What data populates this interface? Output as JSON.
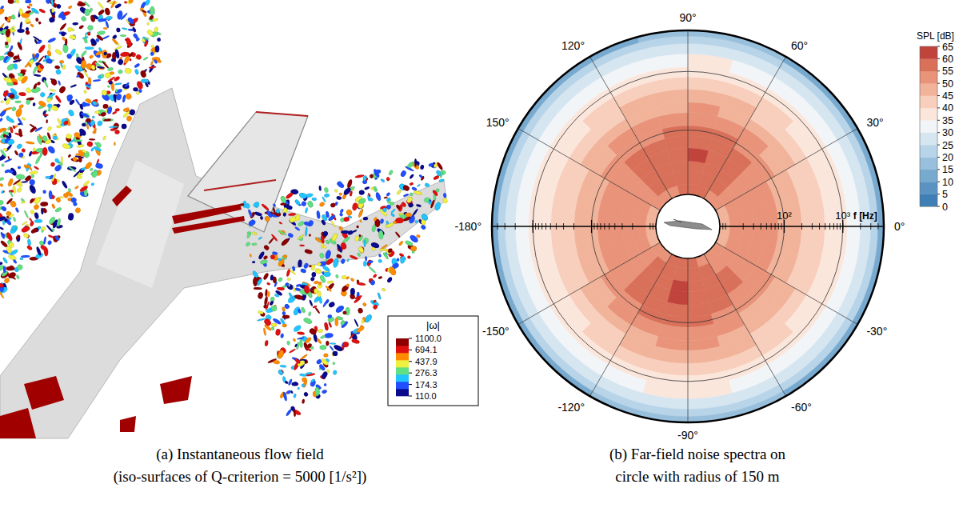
{
  "figure": {
    "panel_a": {
      "caption": [
        "(a) Instantaneous flow field",
        "(iso-surfaces of Q-criterion = 5000 [1/s²])"
      ],
      "legend": {
        "title": "|ω|",
        "ticks": [
          {
            "value": 1100,
            "label": "1100.0"
          },
          {
            "value": 694.1,
            "label": "694.1"
          },
          {
            "value": 437.9,
            "label": "437.9"
          },
          {
            "value": 276.3,
            "label": "276.3"
          },
          {
            "value": 174.3,
            "label": "174.3"
          },
          {
            "value": 110,
            "label": "110.0"
          }
        ],
        "colors": [
          "#0a0a8c",
          "#1f4fff",
          "#22c4ff",
          "#60e080",
          "#f0f040",
          "#ff8c00",
          "#e01010",
          "#8b0000"
        ]
      }
    },
    "panel_b": {
      "caption": [
        "(b) Far-field noise spectra on",
        "circle with radius of 150 m"
      ]
    }
  },
  "chart_data": {
    "type": "polar_contour",
    "log": true,
    "grid": true,
    "r_label": "f [Hz]",
    "rlim": [
      8,
      5000
    ],
    "rticks": [
      {
        "value": 100,
        "label": "10²"
      },
      {
        "value": 1000,
        "label": "10³"
      }
    ],
    "thetaticks": [
      {
        "value": 90,
        "label": "90°"
      },
      {
        "value": 60,
        "label": "60°"
      },
      {
        "value": 30,
        "label": "30°"
      },
      {
        "value": 0,
        "label": "0°"
      },
      {
        "value": -30,
        "label": "-30°"
      },
      {
        "value": -60,
        "label": "-60°"
      },
      {
        "value": -90,
        "label": "-90°"
      },
      {
        "value": -120,
        "label": "-120°"
      },
      {
        "value": -150,
        "label": "-150°"
      },
      {
        "value": -180,
        "label": "-180°"
      },
      {
        "value": 150,
        "label": "150°"
      },
      {
        "value": 120,
        "label": "120°"
      }
    ],
    "theta_edges": [
      -180,
      -165,
      -150,
      -135,
      -120,
      -105,
      -90,
      -75,
      -60,
      -45,
      -30,
      -15,
      0,
      15,
      30,
      45,
      60,
      75,
      90,
      105,
      120,
      135,
      150,
      165,
      180
    ],
    "r_edges": [
      8,
      12,
      20,
      30,
      50,
      80,
      120,
      200,
      300,
      500,
      800,
      1200,
      2000,
      3000,
      4000,
      5000
    ],
    "values": [
      [
        48,
        49,
        51,
        53,
        55,
        57,
        56,
        54,
        52,
        51,
        49,
        48,
        48,
        49,
        51,
        53,
        55,
        56,
        55,
        54,
        53,
        51,
        49,
        48
      ],
      [
        50,
        51,
        53,
        55,
        57,
        59,
        58,
        56,
        54,
        53,
        51,
        50,
        50,
        51,
        53,
        55,
        57,
        58,
        57,
        56,
        55,
        53,
        51,
        50
      ],
      [
        51,
        52,
        54,
        56,
        58,
        60,
        59,
        57,
        55,
        54,
        52,
        51,
        51,
        52,
        54,
        56,
        58,
        59,
        58,
        57,
        56,
        54,
        52,
        51
      ],
      [
        51,
        52,
        54,
        56,
        59,
        61,
        59,
        57,
        55,
        54,
        52,
        51,
        51,
        52,
        54,
        56,
        59,
        60,
        58,
        57,
        56,
        54,
        52,
        51
      ],
      [
        50,
        51,
        53,
        55,
        57,
        59,
        58,
        56,
        54,
        53,
        51,
        50,
        50,
        51,
        53,
        55,
        58,
        58,
        57,
        56,
        55,
        53,
        51,
        50
      ],
      [
        48,
        49,
        51,
        53,
        55,
        57,
        56,
        54,
        52,
        51,
        49,
        48,
        48,
        49,
        51,
        53,
        55,
        56,
        55,
        54,
        53,
        51,
        49,
        48
      ],
      [
        45,
        46,
        48,
        50,
        52,
        54,
        53,
        51,
        49,
        48,
        46,
        45,
        45,
        46,
        48,
        50,
        52,
        53,
        52,
        51,
        50,
        48,
        46,
        45
      ],
      [
        42,
        43,
        45,
        47,
        49,
        50,
        50,
        48,
        46,
        45,
        43,
        42,
        42,
        43,
        45,
        47,
        49,
        50,
        49,
        48,
        47,
        45,
        43,
        42
      ],
      [
        40,
        41,
        42,
        44,
        45,
        46,
        46,
        45,
        43,
        42,
        41,
        40,
        40,
        41,
        42,
        44,
        45,
        46,
        45,
        45,
        44,
        42,
        41,
        40
      ],
      [
        38,
        38,
        39,
        40,
        41,
        42,
        42,
        41,
        40,
        39,
        38,
        38,
        38,
        38,
        39,
        40,
        41,
        42,
        41,
        41,
        40,
        39,
        38,
        38
      ],
      [
        35,
        35,
        36,
        37,
        38,
        39,
        39,
        38,
        37,
        36,
        35,
        35,
        35,
        35,
        36,
        37,
        38,
        39,
        38,
        38,
        37,
        36,
        35,
        35
      ],
      [
        31,
        31,
        32,
        33,
        34,
        35,
        35,
        34,
        33,
        32,
        31,
        31,
        31,
        31,
        32,
        33,
        34,
        35,
        34,
        34,
        33,
        32,
        31,
        31
      ],
      [
        27,
        27,
        28,
        28,
        29,
        29,
        29,
        29,
        28,
        28,
        27,
        27,
        27,
        27,
        28,
        28,
        29,
        29,
        29,
        28,
        28,
        28,
        27,
        27
      ],
      [
        21,
        21,
        22,
        22,
        23,
        23,
        23,
        23,
        22,
        22,
        21,
        21,
        21,
        21,
        22,
        22,
        23,
        23,
        23,
        22,
        22,
        22,
        21,
        21
      ],
      [
        13,
        13,
        14,
        14,
        15,
        15,
        15,
        15,
        14,
        14,
        13,
        13,
        13,
        13,
        14,
        14,
        15,
        15,
        15,
        14,
        14,
        14,
        13,
        13
      ]
    ],
    "colorbar": {
      "label": "SPL [dB]",
      "range": [
        0,
        65
      ],
      "ticks": [
        65,
        60,
        55,
        50,
        45,
        40,
        35,
        30,
        25,
        20,
        15,
        10,
        5,
        0
      ],
      "colors": [
        "#3f7fb6",
        "#5a93c2",
        "#78a9cf",
        "#98bfdc",
        "#b8d4e8",
        "#d6e6f1",
        "#f2f5f8",
        "#fbe6dc",
        "#f7cfbc",
        "#f1b39a",
        "#e8937a",
        "#d9705a",
        "#c0433c"
      ]
    }
  }
}
